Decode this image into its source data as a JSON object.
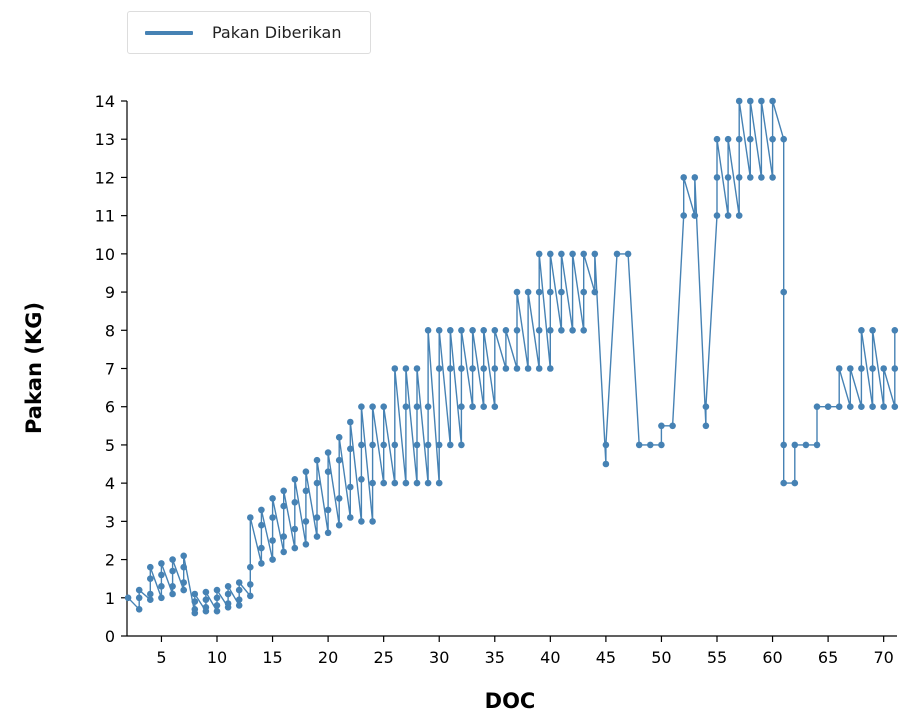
{
  "chart_data": {
    "type": "line",
    "title": "",
    "xlabel": "DOC",
    "ylabel": "Pakan (KG)",
    "xlim": [
      1.9,
      71.2
    ],
    "ylim": [
      0,
      14
    ],
    "xticks": [
      5,
      10,
      15,
      20,
      25,
      30,
      35,
      40,
      45,
      50,
      55,
      60,
      65,
      70
    ],
    "yticks": [
      0,
      1,
      2,
      3,
      4,
      5,
      6,
      7,
      8,
      9,
      10,
      11,
      12,
      13,
      14
    ],
    "legend": {
      "position": "top-left",
      "entries": [
        "Pakan Diberikan"
      ]
    },
    "grid": false,
    "colors": {
      "series": "#4682b4"
    },
    "series": [
      {
        "name": "Pakan Diberikan",
        "points": [
          [
            2,
            1
          ],
          [
            3,
            0.7
          ],
          [
            3,
            1
          ],
          [
            3,
            1.2
          ],
          [
            4,
            0.95
          ],
          [
            4,
            1.1
          ],
          [
            4,
            1.5
          ],
          [
            4,
            1.8
          ],
          [
            5,
            1
          ],
          [
            5,
            1.3
          ],
          [
            5,
            1.6
          ],
          [
            5,
            1.9
          ],
          [
            6,
            1.1
          ],
          [
            6,
            1.3
          ],
          [
            6,
            1.7
          ],
          [
            6,
            2
          ],
          [
            7,
            1.2
          ],
          [
            7,
            1.4
          ],
          [
            7,
            1.8
          ],
          [
            7,
            2.1
          ],
          [
            8,
            0.6
          ],
          [
            8,
            0.7
          ],
          [
            8,
            0.9
          ],
          [
            8,
            1.1
          ],
          [
            9,
            0.65
          ],
          [
            9,
            0.75
          ],
          [
            9,
            0.95
          ],
          [
            9,
            1.15
          ],
          [
            10,
            0.65
          ],
          [
            10,
            0.8
          ],
          [
            10,
            1
          ],
          [
            10,
            1.2
          ],
          [
            11,
            0.75
          ],
          [
            11,
            0.85
          ],
          [
            11,
            1.1
          ],
          [
            11,
            1.3
          ],
          [
            12,
            0.8
          ],
          [
            12,
            0.95
          ],
          [
            12,
            1.2
          ],
          [
            12,
            1.4
          ],
          [
            13,
            1.05
          ],
          [
            13,
            1.35
          ],
          [
            13,
            1.8
          ],
          [
            13,
            3.1
          ],
          [
            14,
            1.9
          ],
          [
            14,
            2.3
          ],
          [
            14,
            2.9
          ],
          [
            14,
            3.3
          ],
          [
            15,
            2
          ],
          [
            15,
            2.5
          ],
          [
            15,
            3.1
          ],
          [
            15,
            3.6
          ],
          [
            16,
            2.2
          ],
          [
            16,
            2.6
          ],
          [
            16,
            3.4
          ],
          [
            16,
            3.8
          ],
          [
            17,
            2.3
          ],
          [
            17,
            2.8
          ],
          [
            17,
            3.5
          ],
          [
            17,
            4.1
          ],
          [
            18,
            2.4
          ],
          [
            18,
            3
          ],
          [
            18,
            3.8
          ],
          [
            18,
            4.3
          ],
          [
            19,
            2.6
          ],
          [
            19,
            3.1
          ],
          [
            19,
            4
          ],
          [
            19,
            4.6
          ],
          [
            20,
            2.7
          ],
          [
            20,
            3.3
          ],
          [
            20,
            4.3
          ],
          [
            20,
            4.8
          ],
          [
            21,
            2.9
          ],
          [
            21,
            3.6
          ],
          [
            21,
            4.6
          ],
          [
            21,
            5.2
          ],
          [
            22,
            3.1
          ],
          [
            22,
            3.9
          ],
          [
            22,
            4.9
          ],
          [
            22,
            5.6
          ],
          [
            23,
            3
          ],
          [
            23,
            4.1
          ],
          [
            23,
            5
          ],
          [
            23,
            6
          ],
          [
            24,
            3
          ],
          [
            24,
            4
          ],
          [
            24,
            5
          ],
          [
            24,
            6
          ],
          [
            25,
            4
          ],
          [
            25,
            5
          ],
          [
            25,
            6
          ],
          [
            26,
            4
          ],
          [
            26,
            5
          ],
          [
            26,
            7
          ],
          [
            27,
            4
          ],
          [
            27,
            6
          ],
          [
            27,
            7
          ],
          [
            28,
            4
          ],
          [
            28,
            5
          ],
          [
            28,
            6
          ],
          [
            28,
            7
          ],
          [
            29,
            4
          ],
          [
            29,
            5
          ],
          [
            29,
            6
          ],
          [
            29,
            8
          ],
          [
            30,
            4
          ],
          [
            30,
            5
          ],
          [
            30,
            7
          ],
          [
            30,
            8
          ],
          [
            31,
            5
          ],
          [
            31,
            7
          ],
          [
            31,
            8
          ],
          [
            32,
            5
          ],
          [
            32,
            6
          ],
          [
            32,
            7
          ],
          [
            32,
            8
          ],
          [
            33,
            6
          ],
          [
            33,
            7
          ],
          [
            33,
            8
          ],
          [
            34,
            6
          ],
          [
            34,
            7
          ],
          [
            34,
            8
          ],
          [
            35,
            6
          ],
          [
            35,
            7
          ],
          [
            35,
            8
          ],
          [
            36,
            7
          ],
          [
            36,
            8
          ],
          [
            37,
            7
          ],
          [
            37,
            8
          ],
          [
            37,
            9
          ],
          [
            38,
            7
          ],
          [
            38,
            9
          ],
          [
            39,
            7
          ],
          [
            39,
            8
          ],
          [
            39,
            9
          ],
          [
            39,
            10
          ],
          [
            40,
            7
          ],
          [
            40,
            8
          ],
          [
            40,
            9
          ],
          [
            40,
            10
          ],
          [
            41,
            8
          ],
          [
            41,
            9
          ],
          [
            41,
            10
          ],
          [
            42,
            8
          ],
          [
            42,
            10
          ],
          [
            43,
            8
          ],
          [
            43,
            9
          ],
          [
            43,
            10
          ],
          [
            44,
            9
          ],
          [
            44,
            10
          ],
          [
            45,
            4.5
          ],
          [
            45,
            5
          ],
          [
            46,
            10
          ],
          [
            47,
            10
          ],
          [
            48,
            5
          ],
          [
            49,
            5
          ],
          [
            50,
            5
          ],
          [
            50,
            5.5
          ],
          [
            51,
            5.5
          ],
          [
            52,
            11
          ],
          [
            52,
            12
          ],
          [
            53,
            11
          ],
          [
            53,
            12
          ],
          [
            54,
            5.5
          ],
          [
            54,
            6
          ],
          [
            55,
            11
          ],
          [
            55,
            12
          ],
          [
            55,
            13
          ],
          [
            56,
            11
          ],
          [
            56,
            12
          ],
          [
            56,
            13
          ],
          [
            57,
            11
          ],
          [
            57,
            12
          ],
          [
            57,
            13
          ],
          [
            57,
            14
          ],
          [
            58,
            12
          ],
          [
            58,
            13
          ],
          [
            58,
            14
          ],
          [
            59,
            12
          ],
          [
            59,
            14
          ],
          [
            60,
            12
          ],
          [
            60,
            13
          ],
          [
            60,
            14
          ],
          [
            61,
            13
          ],
          [
            61,
            9
          ],
          [
            61,
            5
          ],
          [
            61,
            4
          ],
          [
            62,
            4
          ],
          [
            62,
            5
          ],
          [
            63,
            5
          ],
          [
            64,
            5
          ],
          [
            64,
            6
          ],
          [
            65,
            6
          ],
          [
            66,
            6
          ],
          [
            66,
            7
          ],
          [
            67,
            6
          ],
          [
            67,
            7
          ],
          [
            68,
            6
          ],
          [
            68,
            7
          ],
          [
            68,
            8
          ],
          [
            69,
            6
          ],
          [
            69,
            7
          ],
          [
            69,
            8
          ],
          [
            70,
            6
          ],
          [
            70,
            7
          ],
          [
            71,
            6
          ],
          [
            71,
            7
          ],
          [
            71,
            8
          ]
        ]
      }
    ]
  }
}
